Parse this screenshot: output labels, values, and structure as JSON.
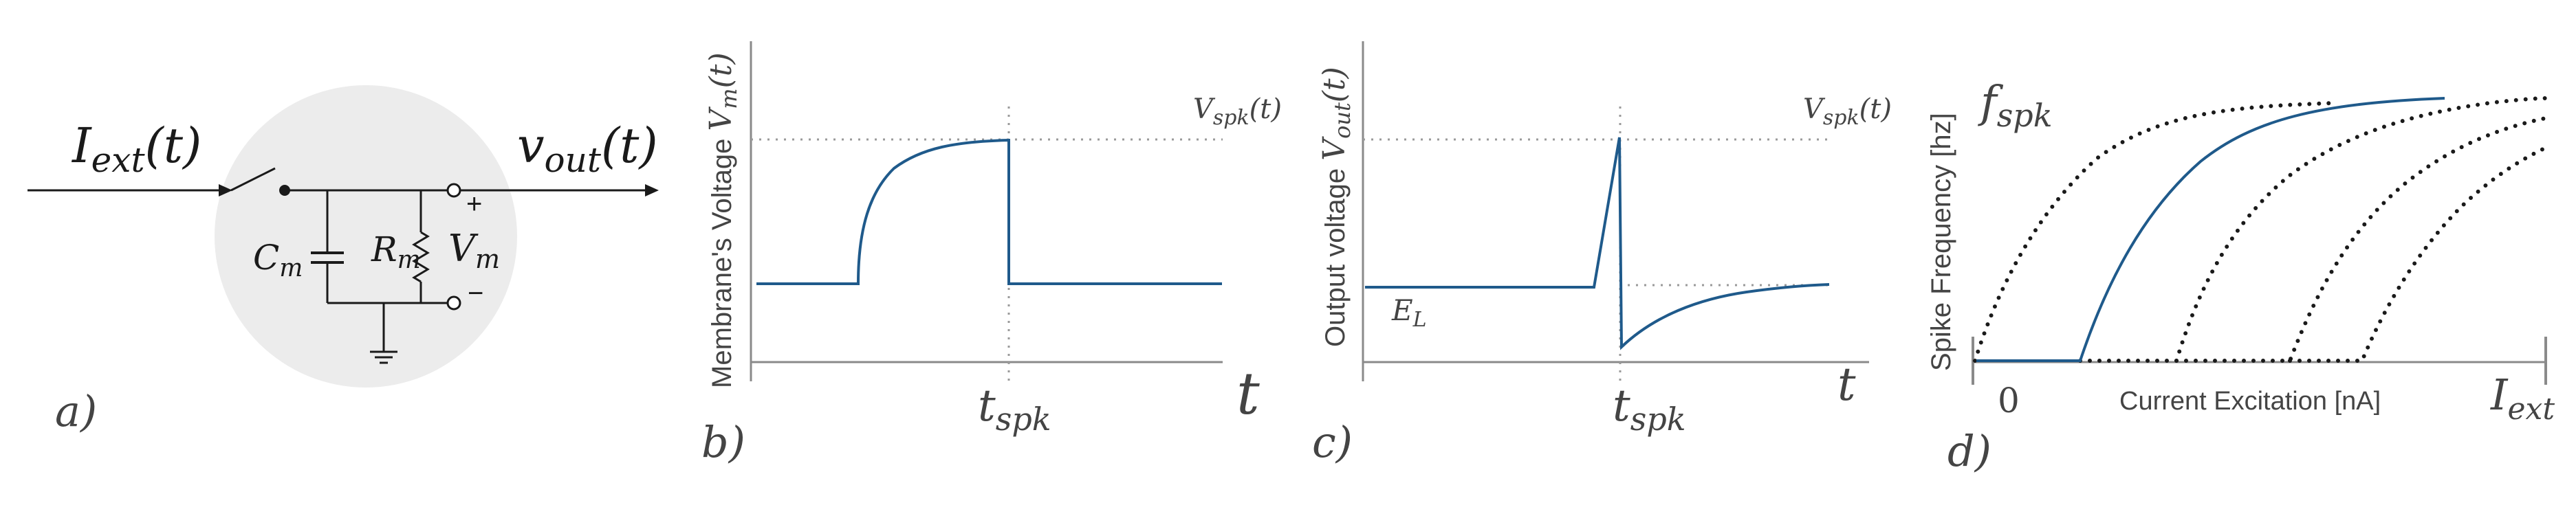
{
  "panels": {
    "a": {
      "label": "a)",
      "input_label": {
        "base": "I",
        "sub": "ext",
        "tail": "(t)"
      },
      "output_label": {
        "base": "v",
        "sub": "out",
        "tail": "(t)"
      },
      "capacitor_label": {
        "base": "C",
        "sub": "m"
      },
      "resistor_label": {
        "base": "R",
        "sub": "m"
      },
      "voltage_label": {
        "base": "V",
        "sub": "m"
      },
      "plus": "+",
      "minus": "−"
    },
    "b": {
      "label": "b)",
      "ylabel": {
        "pre": "Membrane's Voltage ",
        "base": "V",
        "sub": "m",
        "tail": "(t)"
      },
      "xlabel": "t",
      "threshold_label": {
        "base": "V",
        "sub": "spk",
        "tail": "(t)"
      },
      "tick_label": {
        "base": "t",
        "sub": "spk"
      }
    },
    "c": {
      "label": "c)",
      "ylabel": {
        "pre": "Output voltage ",
        "base": "V",
        "sub": "out",
        "tail": "(t)"
      },
      "xlabel": "t",
      "threshold_label": {
        "base": "V",
        "sub": "spk",
        "tail": "(t)"
      },
      "rest_label": {
        "base": "E",
        "sub": "L"
      },
      "tick_label": {
        "base": "t",
        "sub": "spk"
      }
    },
    "d": {
      "label": "d)",
      "ylabel": "Spike Frequency [hz]",
      "ylabel_sym": {
        "base": "f",
        "sub": "spk"
      },
      "xlabel": "Current Excitation [nA]",
      "x_origin": "0",
      "x_sym": {
        "base": "I",
        "sub": "ext"
      }
    }
  },
  "colors": {
    "trace": "#1f5a8b",
    "axis": "#8a8a8a",
    "guide": "#9a9a9a",
    "circle": "#ececec",
    "ink": "#1a1a1a",
    "label": "#444444"
  }
}
